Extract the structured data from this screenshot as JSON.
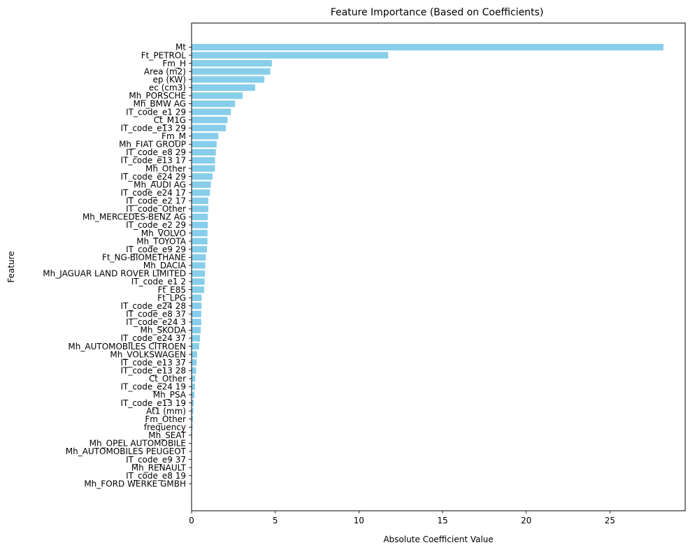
{
  "chart_data": {
    "type": "bar",
    "orientation": "horizontal",
    "title": "Feature Importance (Based on Coefficients)",
    "xlabel": "Absolute Coefficient Value",
    "ylabel": "Feature",
    "xlim": [
      0,
      29.5
    ],
    "xticks": [
      0,
      5,
      10,
      15,
      20,
      25
    ],
    "bar_color": "#87ceeb",
    "categories": [
      "Mt",
      "Ft_PETROL",
      "Fm_H",
      "Area (m2)",
      "ep (KW)",
      "ec (cm3)",
      "Mh_PORSCHE",
      "Mh_BMW AG",
      "IT_code_e1 29",
      "Ct_M1G",
      "IT_code_e13 29",
      "Fm_M",
      "Mh_FIAT GROUP",
      "IT_code_e8 29",
      "IT_code_e13 17",
      "Mh_Other",
      "IT_code_e24 29",
      "Mh_AUDI AG",
      "IT_code_e24 17",
      "IT_code_e2 17",
      "IT_code_Other",
      "Mh_MERCEDES-BENZ AG",
      "IT_code_e2 29",
      "Mh_VOLVO",
      "Mh_TOYOTA",
      "IT_code_e9 29",
      "Ft_NG-BIOMETHANE",
      "Mh_DACIA",
      "Mh_JAGUAR LAND ROVER LIMITED",
      "IT_code_e1 2",
      "Ft_E85",
      "Ft_LPG",
      "IT_code_e24 28",
      "IT_code_e8 37",
      "IT_code_e24 3",
      "Mh_SKODA",
      "IT_code_e24 37",
      "Mh_AUTOMOBILES CITROEN",
      "Mh_VOLKSWAGEN",
      "IT_code_e13 37",
      "IT_code_e13 28",
      "Ct_Other",
      "IT_code_e24 19",
      "Mh_PSA",
      "IT_code_e13 19",
      "At1 (mm)",
      "Fm_Other",
      "frequency",
      "Mh_SEAT",
      "Mh_OPEL AUTOMOBILE",
      "Mh_AUTOMOBILES PEUGEOT",
      "IT_code_e9 37",
      "Mh_RENAULT",
      "IT_code_e8 19",
      "Mh_FORD WERKE GMBH"
    ],
    "values": [
      28.2,
      11.75,
      4.8,
      4.7,
      4.35,
      3.8,
      3.05,
      2.6,
      2.35,
      2.15,
      2.05,
      1.6,
      1.5,
      1.45,
      1.4,
      1.4,
      1.25,
      1.15,
      1.1,
      1.0,
      1.0,
      0.97,
      0.97,
      0.95,
      0.95,
      0.92,
      0.85,
      0.82,
      0.8,
      0.78,
      0.75,
      0.6,
      0.6,
      0.58,
      0.58,
      0.55,
      0.5,
      0.45,
      0.33,
      0.3,
      0.27,
      0.22,
      0.2,
      0.17,
      0.13,
      0.1,
      0.08,
      0.06,
      0.04,
      0.02,
      0.02,
      0.01,
      0.01,
      0.01,
      0.005
    ]
  }
}
